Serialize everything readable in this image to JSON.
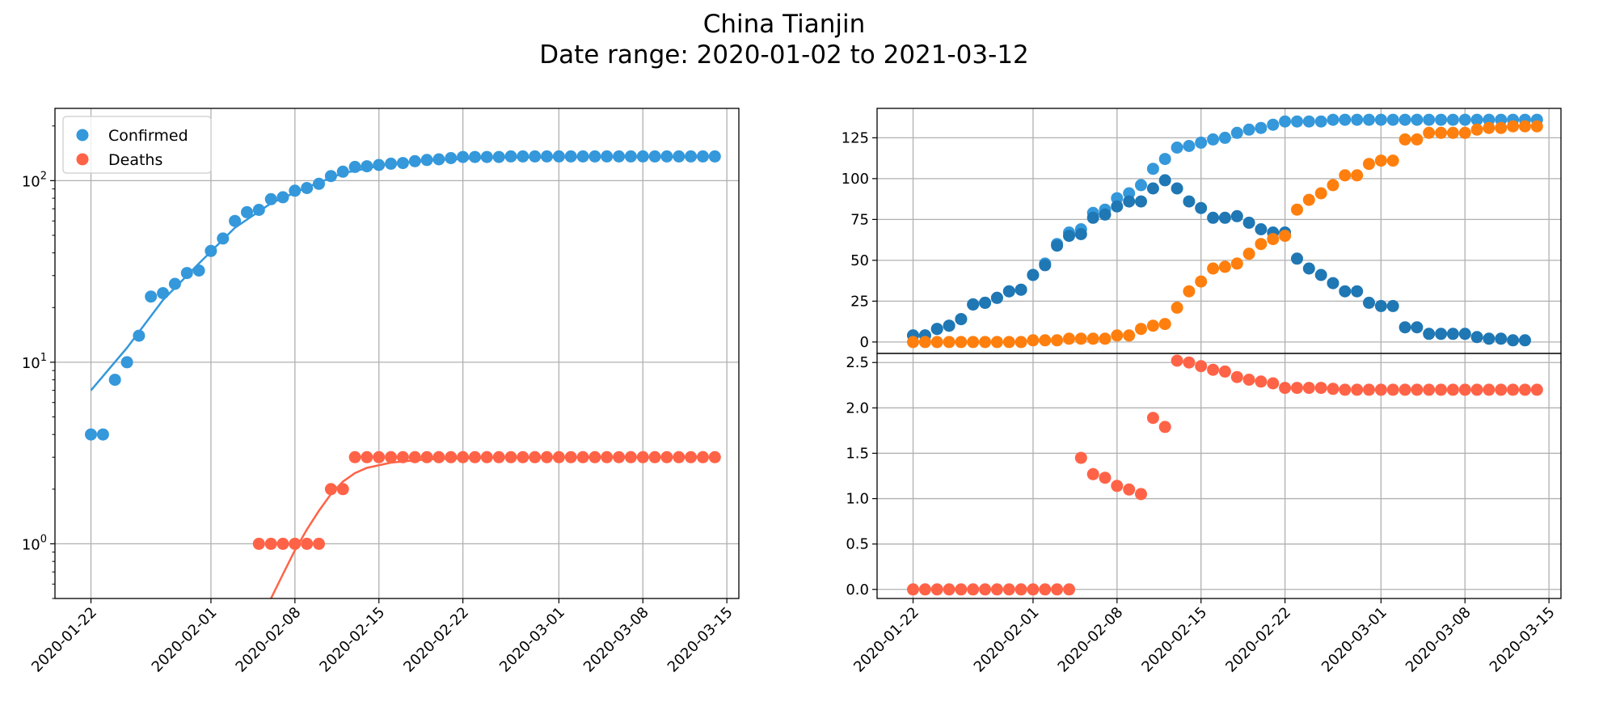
{
  "figure": {
    "title_line1": "China Tianjin",
    "title_line2": "Date range: 2020-01-02 to 2021-03-12"
  },
  "colors": {
    "confirmed": "#3498db",
    "deaths": "#ff6347",
    "confirmed_dark": "#1f77b4",
    "orange": "#ff7f0e",
    "grid": "#b0b0b0"
  },
  "chart_data": [
    {
      "type": "scatter",
      "title": "",
      "yscale": "log",
      "xlim": [
        "2020-01-19",
        "2020-03-16"
      ],
      "ylim": [
        0.5,
        250
      ],
      "x_ticks": [
        "2020-01-22",
        "2020-02-01",
        "2020-02-08",
        "2020-02-15",
        "2020-02-22",
        "2020-03-01",
        "2020-03-08",
        "2020-03-15"
      ],
      "y_ticks": [
        {
          "value": 1,
          "base": "10",
          "exp": "0"
        },
        {
          "value": 10,
          "base": "10",
          "exp": "1"
        },
        {
          "value": 100,
          "base": "10",
          "exp": "2"
        }
      ],
      "grid": true,
      "legend": {
        "position": "top-left",
        "entries": [
          "Confirmed",
          "Deaths"
        ]
      },
      "series": [
        {
          "name": "Confirmed",
          "start_date": "2020-01-22",
          "values": [
            4,
            4,
            8,
            10,
            14,
            23,
            24,
            27,
            31,
            32,
            41,
            48,
            60,
            67,
            69,
            79,
            81,
            88,
            91,
            96,
            106,
            112,
            119,
            120,
            122,
            124,
            125,
            128,
            130,
            131,
            133,
            135,
            135,
            135,
            135,
            136,
            136,
            136,
            136,
            136,
            136,
            136,
            136,
            136,
            136,
            136,
            136,
            136,
            136,
            136,
            136,
            136,
            136
          ]
        },
        {
          "name": "Deaths",
          "start_date": "2020-01-22",
          "values": [
            null,
            null,
            null,
            null,
            null,
            null,
            null,
            null,
            null,
            null,
            null,
            null,
            null,
            null,
            1,
            1,
            1,
            1,
            1,
            1,
            2,
            2,
            3,
            3,
            3,
            3,
            3,
            3,
            3,
            3,
            3,
            3,
            3,
            3,
            3,
            3,
            3,
            3,
            3,
            3,
            3,
            3,
            3,
            3,
            3,
            3,
            3,
            3,
            3,
            3,
            3,
            3,
            3
          ]
        },
        {
          "name": "Confirmed fit",
          "type": "line",
          "points": [
            [
              "2020-01-22",
              7
            ],
            [
              "2020-01-25",
              12
            ],
            [
              "2020-01-28",
              22
            ],
            [
              "2020-01-31",
              35
            ],
            [
              "2020-02-03",
              55
            ],
            [
              "2020-02-06",
              75
            ],
            [
              "2020-02-09",
              92
            ],
            [
              "2020-02-12",
              110
            ],
            [
              "2020-02-16",
              124
            ],
            [
              "2020-02-20",
              130
            ],
            [
              "2020-02-25",
              134
            ],
            [
              "2020-03-05",
              135
            ],
            [
              "2020-03-13",
              135
            ]
          ]
        },
        {
          "name": "Deaths fit",
          "type": "line",
          "points": [
            [
              "2020-02-06",
              0.5
            ],
            [
              "2020-02-07",
              0.68
            ],
            [
              "2020-02-08",
              0.92
            ],
            [
              "2020-02-09",
              1.2
            ],
            [
              "2020-02-10",
              1.52
            ],
            [
              "2020-02-11",
              1.88
            ],
            [
              "2020-02-12",
              2.2
            ],
            [
              "2020-02-13",
              2.45
            ],
            [
              "2020-02-14",
              2.62
            ],
            [
              "2020-02-16",
              2.8
            ],
            [
              "2020-02-19",
              2.92
            ],
            [
              "2020-02-25",
              2.98
            ],
            [
              "2020-03-13",
              3.0
            ]
          ]
        }
      ]
    },
    {
      "type": "scatter",
      "title": "",
      "xlim": [
        "2020-01-19",
        "2020-03-16"
      ],
      "ylim": [
        -7,
        143
      ],
      "x_ticks": [],
      "y_ticks": [
        0,
        25,
        50,
        75,
        100,
        125
      ],
      "grid": true,
      "series": [
        {
          "name": "Confirmed",
          "start_date": "2020-01-22",
          "values": [
            4,
            4,
            8,
            10,
            14,
            23,
            24,
            27,
            31,
            32,
            41,
            48,
            60,
            67,
            69,
            79,
            81,
            88,
            91,
            96,
            106,
            112,
            119,
            120,
            122,
            124,
            125,
            128,
            130,
            131,
            133,
            135,
            135,
            135,
            135,
            136,
            136,
            136,
            136,
            136,
            136,
            136,
            136,
            136,
            136,
            136,
            136,
            136,
            136,
            136,
            136,
            136,
            136
          ]
        },
        {
          "name": "",
          "start_date": "2020-01-22",
          "values": [
            4,
            4,
            8,
            10,
            14,
            23,
            24,
            27,
            31,
            32,
            41,
            47,
            59,
            65,
            66,
            76,
            78,
            83,
            86,
            86,
            94,
            99,
            94,
            86,
            82,
            76,
            76,
            77,
            73,
            69,
            67,
            67,
            51,
            45,
            41,
            36,
            31,
            31,
            24,
            22,
            22,
            9,
            9,
            5,
            5,
            5,
            5,
            3,
            2,
            2,
            1,
            1,
            null
          ]
        },
        {
          "name": "",
          "start_date": "2020-01-22",
          "values": [
            0,
            0,
            0,
            0,
            0,
            0,
            0,
            0,
            0,
            0,
            1,
            1,
            1,
            2,
            2,
            2,
            2,
            4,
            4,
            8,
            10,
            11,
            21,
            31,
            37,
            45,
            46,
            48,
            54,
            60,
            63,
            65,
            81,
            87,
            91,
            96,
            102,
            102,
            109,
            111,
            111,
            124,
            124,
            128,
            128,
            128,
            128,
            130,
            131,
            131,
            132,
            132,
            132
          ]
        }
      ]
    },
    {
      "type": "scatter",
      "title": "",
      "xlim": [
        "2020-01-19",
        "2020-03-16"
      ],
      "ylim": [
        -0.1,
        2.6
      ],
      "x_ticks": [
        "2020-01-22",
        "2020-02-01",
        "2020-02-08",
        "2020-02-15",
        "2020-02-22",
        "2020-03-01",
        "2020-03-08",
        "2020-03-15"
      ],
      "y_ticks": [
        0.0,
        0.5,
        1.0,
        1.5,
        2.0,
        2.5
      ],
      "grid": true,
      "series": [
        {
          "name": "",
          "start_date": "2020-01-22",
          "values": [
            0,
            0,
            0,
            0,
            0,
            0,
            0,
            0,
            0,
            0,
            0,
            0,
            0,
            0,
            1.45,
            1.27,
            1.23,
            1.14,
            1.1,
            1.05,
            1.89,
            1.79,
            2.52,
            2.5,
            2.46,
            2.42,
            2.4,
            2.34,
            2.31,
            2.29,
            2.27,
            2.22,
            2.22,
            2.22,
            2.22,
            2.21,
            2.2,
            2.2,
            2.2,
            2.2,
            2.2,
            2.2,
            2.2,
            2.2,
            2.2,
            2.2,
            2.2,
            2.2,
            2.2,
            2.2,
            2.2,
            2.2,
            2.2
          ]
        }
      ]
    }
  ]
}
